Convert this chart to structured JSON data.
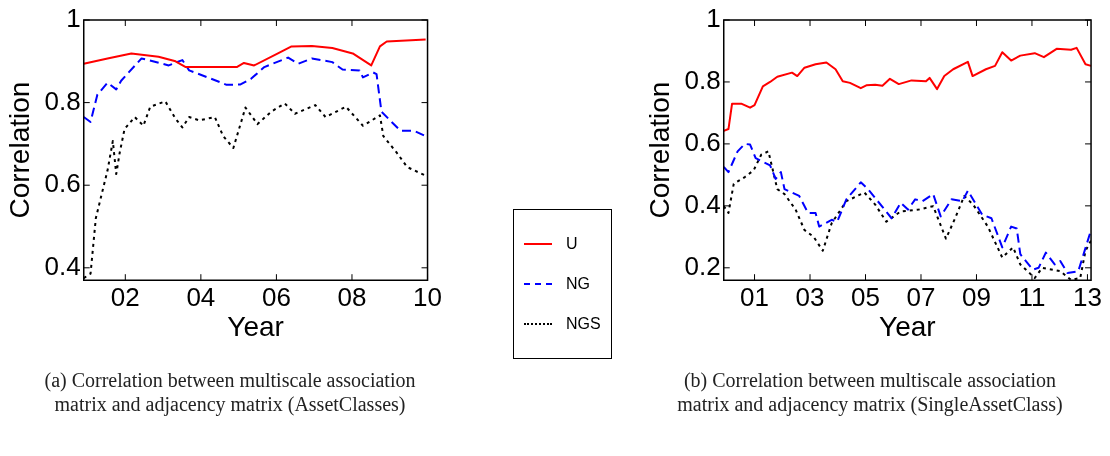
{
  "chart_data": [
    {
      "type": "line",
      "xlabel": "Year",
      "ylabel": "Correlation",
      "xlim": [
        2000.9,
        2010
      ],
      "xticks": [
        {
          "value": 2002,
          "label": "02"
        },
        {
          "value": 2004,
          "label": "04"
        },
        {
          "value": 2006,
          "label": "06"
        },
        {
          "value": 2008,
          "label": "08"
        },
        {
          "value": 2010,
          "label": "10"
        }
      ],
      "ylim": [
        0.37,
        1
      ],
      "yticks": [
        0.4,
        0.6,
        0.8,
        1
      ],
      "legend": "right",
      "marker": "none",
      "annotations": [
        "(a) Correlation between multiscale association matrix and adjacency matrix (AssetClasses)"
      ],
      "series": [
        {
          "name": "U",
          "color": "#ff0000",
          "line_style": "solid",
          "x": [
            2000.9,
            2001.53,
            2002.16,
            2002.88,
            2003.33,
            2003.6,
            2004.23,
            2004.95,
            2005.14,
            2005.41,
            2006.04,
            2006.4,
            2006.94,
            2007.48,
            2008.02,
            2008.51,
            2008.74,
            2008.92,
            2009.95
          ],
          "values": [
            0.894,
            0.907,
            0.919,
            0.911,
            0.9,
            0.886,
            0.886,
            0.886,
            0.896,
            0.89,
            0.919,
            0.936,
            0.937,
            0.932,
            0.919,
            0.89,
            0.936,
            0.948,
            0.953
          ]
        },
        {
          "name": "NG",
          "color": "#0000ff",
          "line_style": "dashed",
          "x": [
            2000.9,
            2001.08,
            2001.26,
            2001.53,
            2001.76,
            2001.89,
            2002.43,
            2003.15,
            2003.51,
            2003.69,
            2004.41,
            2004.68,
            2005.05,
            2005.32,
            2005.68,
            2006.31,
            2006.58,
            2006.94,
            2007.48,
            2007.75,
            2008.2,
            2008.29,
            2008.56,
            2008.65,
            2008.78,
            2009.28,
            2009.64,
            2009.95
          ],
          "values": [
            0.765,
            0.753,
            0.819,
            0.848,
            0.832,
            0.853,
            0.907,
            0.89,
            0.903,
            0.878,
            0.853,
            0.843,
            0.844,
            0.857,
            0.886,
            0.909,
            0.894,
            0.907,
            0.898,
            0.88,
            0.878,
            0.861,
            0.873,
            0.869,
            0.778,
            0.732,
            0.732,
            0.719
          ]
        },
        {
          "name": "NGS",
          "color": "#000000",
          "line_style": "dotted",
          "x": [
            2000.9,
            2001.08,
            2001.22,
            2001.35,
            2001.53,
            2001.67,
            2001.76,
            2001.85,
            2001.98,
            2002.25,
            2002.48,
            2002.66,
            2003.06,
            2003.33,
            2003.51,
            2003.69,
            2003.96,
            2004.37,
            2004.59,
            2004.86,
            2005.18,
            2005.5,
            2005.86,
            2006.22,
            2006.49,
            2007.03,
            2007.3,
            2007.84,
            2008.29,
            2008.74,
            2008.83,
            2009.19,
            2009.46,
            2009.95
          ],
          "values": [
            0.375,
            0.386,
            0.52,
            0.569,
            0.636,
            0.707,
            0.627,
            0.678,
            0.736,
            0.765,
            0.744,
            0.79,
            0.803,
            0.761,
            0.74,
            0.765,
            0.757,
            0.765,
            0.719,
            0.69,
            0.788,
            0.748,
            0.778,
            0.798,
            0.773,
            0.794,
            0.765,
            0.79,
            0.744,
            0.769,
            0.719,
            0.678,
            0.644,
            0.623
          ]
        }
      ]
    },
    {
      "type": "line",
      "xlabel": "Year",
      "ylabel": "Correlation",
      "xlim": [
        1999.89,
        2013.13
      ],
      "xticks": [
        {
          "value": 2001,
          "label": "01"
        },
        {
          "value": 2003,
          "label": "03"
        },
        {
          "value": 2005,
          "label": "05"
        },
        {
          "value": 2007,
          "label": "07"
        },
        {
          "value": 2009,
          "label": "09"
        },
        {
          "value": 2011,
          "label": "11"
        },
        {
          "value": 2013,
          "label": "13"
        }
      ],
      "ylim": [
        0.16,
        1
      ],
      "yticks": [
        0.2,
        0.4,
        0.6,
        0.8,
        1
      ],
      "marker": "none",
      "annotations": [
        "(b) Correlation between multiscale association matrix and adjacency matrix (SingleAssetClass)"
      ],
      "series": [
        {
          "color": "#ff0000",
          "line_style": "solid",
          "x": [
            1999.89,
            2000.06,
            2000.19,
            2000.52,
            2000.84,
            2001,
            2001.3,
            2001.56,
            2001.82,
            2002.35,
            2002.54,
            2002.8,
            2003.2,
            2003.59,
            2003.92,
            2004.18,
            2004.44,
            2004.83,
            2005.03,
            2005.35,
            2005.61,
            2005.88,
            2006.2,
            2006.66,
            2007.18,
            2007.31,
            2007.58,
            2007.84,
            2008.16,
            2008.69,
            2008.86,
            2009.34,
            2009.67,
            2009.93,
            2010.25,
            2010.58,
            2011.1,
            2011.43,
            2011.89,
            2012.41,
            2012.61,
            2012.93,
            2013.13
          ],
          "values": [
            0.642,
            0.648,
            0.73,
            0.73,
            0.717,
            0.725,
            0.786,
            0.8,
            0.817,
            0.83,
            0.819,
            0.846,
            0.857,
            0.863,
            0.841,
            0.802,
            0.797,
            0.78,
            0.789,
            0.791,
            0.788,
            0.81,
            0.793,
            0.805,
            0.802,
            0.813,
            0.777,
            0.819,
            0.841,
            0.865,
            0.819,
            0.841,
            0.852,
            0.896,
            0.869,
            0.885,
            0.893,
            0.88,
            0.907,
            0.904,
            0.91,
            0.857,
            0.852
          ]
        },
        {
          "color": "#0000ff",
          "line_style": "dashed",
          "x": [
            1999.89,
            2000.06,
            2000.39,
            2000.65,
            2000.84,
            2001.04,
            2001.56,
            2001.76,
            2001.95,
            2002.08,
            2002.61,
            2002.93,
            2003.2,
            2003.33,
            2003.78,
            2003.98,
            2004.31,
            2004.83,
            2005.09,
            2005.94,
            2006.27,
            2006.53,
            2006.79,
            2007.05,
            2007.44,
            2007.71,
            2008.1,
            2008.49,
            2008.69,
            2009.21,
            2009.54,
            2009.93,
            2010.25,
            2010.45,
            2010.58,
            2011.03,
            2011.24,
            2011.5,
            2011.82,
            2012.02,
            2012.28,
            2012.67,
            2013.13
          ],
          "values": [
            0.526,
            0.509,
            0.576,
            0.6,
            0.598,
            0.554,
            0.531,
            0.487,
            0.509,
            0.454,
            0.432,
            0.377,
            0.377,
            0.333,
            0.355,
            0.349,
            0.421,
            0.476,
            0.454,
            0.36,
            0.41,
            0.388,
            0.421,
            0.415,
            0.438,
            0.366,
            0.421,
            0.415,
            0.449,
            0.371,
            0.36,
            0.266,
            0.333,
            0.327,
            0.244,
            0.194,
            0.2,
            0.249,
            0.211,
            0.222,
            0.183,
            0.189,
            0.322
          ]
        },
        {
          "color": "#000000",
          "line_style": "dotted",
          "x": [
            1999.89,
            2000.06,
            2000.25,
            2000.65,
            2000.97,
            2001.24,
            2001.5,
            2001.82,
            2002.08,
            2002.48,
            2002.8,
            2003.13,
            2003.46,
            2003.78,
            2004.31,
            2004.96,
            2005.35,
            2005.75,
            2006.27,
            2006.92,
            2007.44,
            2007.9,
            2008.23,
            2008.56,
            2008.88,
            2009.41,
            2009.93,
            2010.32,
            2010.58,
            2011.1,
            2011.37,
            2012.02,
            2012.41,
            2012.74,
            2012.93,
            2013.13
          ],
          "values": [
            0.399,
            0.377,
            0.471,
            0.493,
            0.515,
            0.565,
            0.576,
            0.454,
            0.438,
            0.388,
            0.322,
            0.3,
            0.255,
            0.344,
            0.415,
            0.443,
            0.404,
            0.349,
            0.382,
            0.388,
            0.399,
            0.294,
            0.36,
            0.432,
            0.404,
            0.333,
            0.233,
            0.266,
            0.211,
            0.167,
            0.2,
            0.189,
            0.161,
            0.167,
            0.255,
            0.288
          ]
        }
      ]
    }
  ]
}
